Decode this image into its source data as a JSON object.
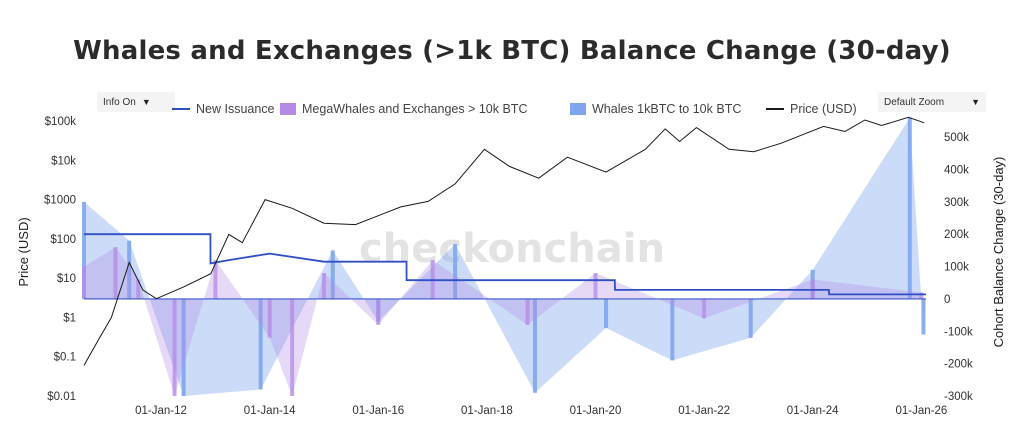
{
  "title": "Whales and Exchanges (>1k BTC) Balance Change (30-day)",
  "controls": {
    "info_button": "Info On",
    "zoom_select": "Default Zoom"
  },
  "watermark": "checkonchain",
  "colors": {
    "new_issuance": "#2f4fc4",
    "megawhales": "#b48ae6",
    "whales": "#7fa6ee",
    "price": "#1a1a1a"
  },
  "chart_data": {
    "type": "line",
    "x_axis": {
      "ticks": [
        "01-Jan-12",
        "01-Jan-14",
        "01-Jan-16",
        "01-Jan-18",
        "01-Jan-20",
        "01-Jan-22",
        "01-Jan-24",
        "01-Jan-26"
      ],
      "range": [
        "2010-08-01",
        "2026-02-01"
      ]
    },
    "y_left": {
      "label": "Price (USD)",
      "scale": "log",
      "ticks": [
        "$100k",
        "$10k",
        "$1000",
        "$100",
        "$10",
        "$1",
        "$0.1",
        "$0.01"
      ],
      "range": [
        0.01,
        100000
      ]
    },
    "y_right": {
      "label": "Cohort Balance Change (30-day)",
      "ticks": [
        "500k",
        "400k",
        "300k",
        "200k",
        "100k",
        "0",
        "-100k",
        "-200k",
        "-300k"
      ],
      "range": [
        -300000,
        550000
      ]
    },
    "legend": {
      "position": "top",
      "entries": [
        {
          "name": "New Issuance",
          "style": "line"
        },
        {
          "name": "MegaWhales and Exchanges > 10k BTC",
          "style": "area"
        },
        {
          "name": "Whales 1kBTC to 10k BTC",
          "style": "area"
        },
        {
          "name": "Price (USD)",
          "style": "line"
        }
      ]
    },
    "price_usd": [
      [
        "2010-08-01",
        0.06
      ],
      [
        "2010-11-01",
        0.25
      ],
      [
        "2011-02-01",
        1
      ],
      [
        "2011-06-01",
        25
      ],
      [
        "2011-09-01",
        5
      ],
      [
        "2011-12-01",
        3
      ],
      [
        "2012-06-01",
        6
      ],
      [
        "2012-12-01",
        13
      ],
      [
        "2013-04-01",
        130
      ],
      [
        "2013-07-01",
        80
      ],
      [
        "2013-12-01",
        1000
      ],
      [
        "2014-06-01",
        600
      ],
      [
        "2015-01-01",
        250
      ],
      [
        "2015-08-01",
        230
      ],
      [
        "2016-06-01",
        650
      ],
      [
        "2016-12-01",
        900
      ],
      [
        "2017-06-01",
        2500
      ],
      [
        "2017-12-15",
        19000
      ],
      [
        "2018-06-01",
        7000
      ],
      [
        "2018-12-15",
        3500
      ],
      [
        "2019-06-26",
        12000
      ],
      [
        "2020-03-12",
        5000
      ],
      [
        "2020-12-01",
        19000
      ],
      [
        "2021-04-14",
        63000
      ],
      [
        "2021-07-20",
        30000
      ],
      [
        "2021-11-10",
        68000
      ],
      [
        "2022-06-18",
        19000
      ],
      [
        "2022-12-01",
        16500
      ],
      [
        "2023-06-01",
        27000
      ],
      [
        "2024-03-14",
        73000
      ],
      [
        "2024-08-05",
        54000
      ],
      [
        "2024-12-17",
        106000
      ],
      [
        "2025-04-08",
        77000
      ],
      [
        "2025-10-06",
        124000
      ],
      [
        "2026-01-20",
        90000
      ]
    ],
    "new_issuance_btc_30d": [
      [
        "2010-08-01",
        200000
      ],
      [
        "2011-06-01",
        200000
      ],
      [
        "2012-11-28",
        200000
      ],
      [
        "2012-11-29",
        110000
      ],
      [
        "2013-04-01",
        120000
      ],
      [
        "2014-01-01",
        140000
      ],
      [
        "2015-01-01",
        115000
      ],
      [
        "2016-07-09",
        115000
      ],
      [
        "2016-07-10",
        58000
      ],
      [
        "2020-05-10",
        58000
      ],
      [
        "2020-05-11",
        28000
      ],
      [
        "2024-04-19",
        28000
      ],
      [
        "2024-04-20",
        14000
      ],
      [
        "2026-02-01",
        14000
      ]
    ],
    "megawhales_exchanges_gt10k_btc_30d": [
      [
        "2010-08-01",
        100000
      ],
      [
        "2011-03-01",
        160000
      ],
      [
        "2011-08-01",
        60000
      ],
      [
        "2012-04-01",
        -300000
      ],
      [
        "2013-01-01",
        120000
      ],
      [
        "2014-01-01",
        -120000
      ],
      [
        "2014-06-01",
        -300000
      ],
      [
        "2015-01-01",
        80000
      ],
      [
        "2016-01-01",
        -80000
      ],
      [
        "2017-01-01",
        120000
      ],
      [
        "2018-10-01",
        -80000
      ],
      [
        "2020-01-01",
        80000
      ],
      [
        "2022-01-01",
        -60000
      ],
      [
        "2024-01-01",
        60000
      ],
      [
        "2026-01-01",
        20000
      ]
    ],
    "whales_1k_to_10k_btc_30d": [
      [
        "2010-08-01",
        300000
      ],
      [
        "2011-06-01",
        180000
      ],
      [
        "2012-06-01",
        -300000
      ],
      [
        "2013-11-01",
        -280000
      ],
      [
        "2015-03-01",
        150000
      ],
      [
        "2016-01-01",
        -70000
      ],
      [
        "2017-06-01",
        170000
      ],
      [
        "2018-11-20",
        -290000
      ],
      [
        "2020-03-12",
        -90000
      ],
      [
        "2021-06-01",
        -190000
      ],
      [
        "2022-11-10",
        -120000
      ],
      [
        "2024-01-01",
        90000
      ],
      [
        "2025-10-15",
        560000
      ],
      [
        "2026-01-15",
        -110000
      ]
    ]
  }
}
